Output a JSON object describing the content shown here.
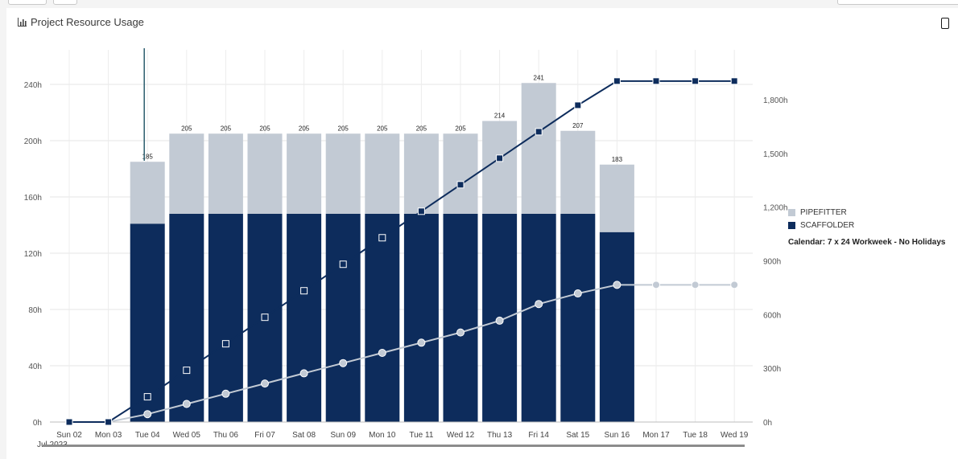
{
  "page": {
    "title": "Project Resource Usage",
    "calendar_note": "Calendar: 7 x 24 Workweek - No Holidays",
    "month_label": "Jul 2023"
  },
  "colors": {
    "pipefitter": "#c2cad4",
    "scaffolder": "#0d2c5c"
  },
  "icons": {
    "title": "bar-chart-icon",
    "menu": "more-options-icon"
  },
  "chart_data": {
    "type": "bar",
    "stacked": true,
    "categories": [
      "Sun 02",
      "Mon 03",
      "Tue 04",
      "Wed 05",
      "Thu 06",
      "Fri 07",
      "Sat 08",
      "Sun 09",
      "Mon 10",
      "Tue 11",
      "Wed 12",
      "Thu 13",
      "Fri 14",
      "Sat 15",
      "Sun 16",
      "Mon 17",
      "Tue 18",
      "Wed 19"
    ],
    "x_group_label": "Jul 2023",
    "series": [
      {
        "name": "SCAFFOLDER",
        "values": [
          0,
          0,
          141,
          148,
          148,
          148,
          148,
          148,
          148,
          148,
          148,
          148,
          148,
          148,
          135,
          0,
          0,
          0
        ]
      },
      {
        "name": "PIPEFITTER",
        "values": [
          0,
          0,
          44,
          57,
          57,
          57,
          57,
          57,
          57,
          57,
          57,
          66,
          93,
          59,
          48,
          0,
          0,
          0
        ]
      }
    ],
    "totals": [
      null,
      null,
      185,
      205,
      205,
      205,
      205,
      205,
      205,
      205,
      205,
      214,
      241,
      207,
      183,
      null,
      null,
      null
    ],
    "cumulative_lines": [
      {
        "series": "SCAFFOLDER",
        "axis": "right",
        "values": [
          0,
          0,
          141,
          289,
          437,
          585,
          733,
          881,
          1029,
          1177,
          1325,
          1473,
          1621,
          1769,
          1904,
          1904,
          1904,
          1904
        ]
      },
      {
        "series": "PIPEFITTER",
        "axis": "right",
        "values": [
          0,
          0,
          44,
          101,
          158,
          215,
          272,
          329,
          386,
          443,
          500,
          566,
          659,
          718,
          766,
          766,
          766,
          766
        ]
      }
    ],
    "yaxis_left": {
      "ticks": [
        "0h",
        "40h",
        "80h",
        "120h",
        "160h",
        "200h",
        "240h"
      ],
      "min": 0,
      "max": 240
    },
    "yaxis_right": {
      "ticks": [
        "0h",
        "300h",
        "600h",
        "900h",
        "1,200h",
        "1,500h",
        "1,800h"
      ],
      "min": 0,
      "max": 1800
    },
    "grid": true,
    "legend": "right"
  }
}
